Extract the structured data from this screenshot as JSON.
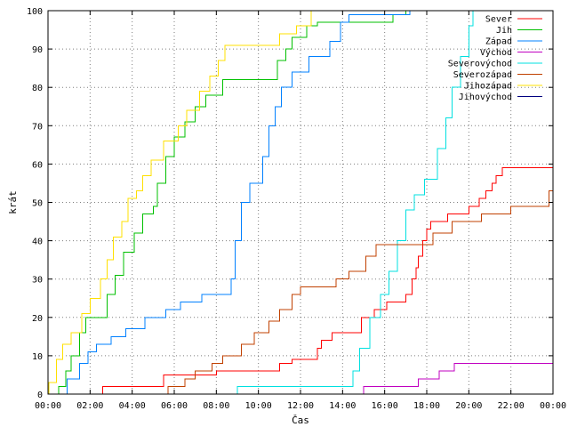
{
  "chart_data": {
    "type": "line",
    "title": "",
    "xlabel": "Čas",
    "ylabel": "krát",
    "xlim": [
      0,
      24
    ],
    "ylim": [
      0,
      100
    ],
    "x_ticks": [
      0,
      2,
      4,
      6,
      8,
      10,
      12,
      14,
      16,
      18,
      20,
      22,
      24
    ],
    "x_tick_labels": [
      "00:00",
      "02:00",
      "04:00",
      "06:00",
      "08:00",
      "10:00",
      "12:00",
      "14:00",
      "16:00",
      "18:00",
      "20:00",
      "22:00",
      "00:00"
    ],
    "y_ticks": [
      0,
      10,
      20,
      30,
      40,
      50,
      60,
      70,
      80,
      90,
      100
    ],
    "y_tick_labels": [
      "0",
      "10",
      "20",
      "30",
      "40",
      "50",
      "60",
      "70",
      "80",
      "90",
      "100"
    ],
    "grid": true,
    "legend_position": "top-right",
    "series": [
      {
        "name": "Sever",
        "color": "#ff0000",
        "step": true,
        "points": [
          [
            2.6,
            0
          ],
          [
            2.6,
            2
          ],
          [
            5.5,
            2
          ],
          [
            5.5,
            5
          ],
          [
            8,
            5
          ],
          [
            8,
            6
          ],
          [
            11,
            6
          ],
          [
            11,
            8
          ],
          [
            11.6,
            8
          ],
          [
            11.6,
            9
          ],
          [
            12.8,
            9
          ],
          [
            12.8,
            12
          ],
          [
            13,
            12
          ],
          [
            13,
            14
          ],
          [
            13.5,
            14
          ],
          [
            13.5,
            16
          ],
          [
            14.9,
            16
          ],
          [
            14.9,
            20
          ],
          [
            15.5,
            20
          ],
          [
            15.5,
            22
          ],
          [
            16.1,
            22
          ],
          [
            16.1,
            24
          ],
          [
            17,
            24
          ],
          [
            17,
            26
          ],
          [
            17.3,
            26
          ],
          [
            17.3,
            30
          ],
          [
            17.5,
            30
          ],
          [
            17.5,
            33
          ],
          [
            17.6,
            33
          ],
          [
            17.6,
            36
          ],
          [
            17.8,
            36
          ],
          [
            17.8,
            40
          ],
          [
            18,
            40
          ],
          [
            18,
            43
          ],
          [
            18.2,
            43
          ],
          [
            18.2,
            45
          ],
          [
            19,
            45
          ],
          [
            19,
            47
          ],
          [
            20,
            47
          ],
          [
            20,
            49
          ],
          [
            20.5,
            49
          ],
          [
            20.5,
            51
          ],
          [
            20.8,
            51
          ],
          [
            20.8,
            53
          ],
          [
            21.1,
            53
          ],
          [
            21.1,
            55
          ],
          [
            21.3,
            55
          ],
          [
            21.3,
            57
          ],
          [
            21.6,
            57
          ],
          [
            21.6,
            59
          ],
          [
            24,
            59
          ]
        ]
      },
      {
        "name": "Jih",
        "color": "#00c000",
        "step": true,
        "points": [
          [
            0.5,
            0
          ],
          [
            0.5,
            2
          ],
          [
            0.85,
            2
          ],
          [
            0.85,
            6
          ],
          [
            1.1,
            6
          ],
          [
            1.1,
            10
          ],
          [
            1.5,
            10
          ],
          [
            1.5,
            16
          ],
          [
            1.8,
            16
          ],
          [
            1.8,
            20
          ],
          [
            2.8,
            20
          ],
          [
            2.8,
            26
          ],
          [
            3.2,
            26
          ],
          [
            3.2,
            31
          ],
          [
            3.6,
            31
          ],
          [
            3.6,
            37
          ],
          [
            4.1,
            37
          ],
          [
            4.1,
            42
          ],
          [
            4.5,
            42
          ],
          [
            4.5,
            47
          ],
          [
            5,
            47
          ],
          [
            5,
            49
          ],
          [
            5.2,
            49
          ],
          [
            5.2,
            55
          ],
          [
            5.6,
            55
          ],
          [
            5.6,
            62
          ],
          [
            6,
            62
          ],
          [
            6,
            67
          ],
          [
            6.5,
            67
          ],
          [
            6.5,
            71
          ],
          [
            7,
            71
          ],
          [
            7,
            75
          ],
          [
            7.5,
            75
          ],
          [
            7.5,
            78
          ],
          [
            8.3,
            78
          ],
          [
            8.3,
            82
          ],
          [
            10.9,
            82
          ],
          [
            10.9,
            87
          ],
          [
            11.3,
            87
          ],
          [
            11.3,
            90
          ],
          [
            11.6,
            90
          ],
          [
            11.6,
            93
          ],
          [
            12.3,
            93
          ],
          [
            12.3,
            96
          ],
          [
            12.8,
            96
          ],
          [
            12.8,
            97
          ],
          [
            16.4,
            97
          ],
          [
            16.4,
            99
          ],
          [
            17,
            99
          ],
          [
            17,
            100
          ]
        ]
      },
      {
        "name": "Západ",
        "color": "#0080ff",
        "step": true,
        "points": [
          [
            0.9,
            0
          ],
          [
            0.9,
            4
          ],
          [
            1.5,
            4
          ],
          [
            1.5,
            8
          ],
          [
            1.9,
            8
          ],
          [
            1.9,
            11
          ],
          [
            2.3,
            11
          ],
          [
            2.3,
            13
          ],
          [
            3,
            13
          ],
          [
            3,
            15
          ],
          [
            3.7,
            15
          ],
          [
            3.7,
            17
          ],
          [
            4.6,
            17
          ],
          [
            4.6,
            20
          ],
          [
            5.6,
            20
          ],
          [
            5.6,
            22
          ],
          [
            6.3,
            22
          ],
          [
            6.3,
            24
          ],
          [
            7.3,
            24
          ],
          [
            7.3,
            26
          ],
          [
            8.7,
            26
          ],
          [
            8.7,
            30
          ],
          [
            8.9,
            30
          ],
          [
            8.9,
            40
          ],
          [
            9.2,
            40
          ],
          [
            9.2,
            50
          ],
          [
            9.6,
            50
          ],
          [
            9.6,
            55
          ],
          [
            10.2,
            55
          ],
          [
            10.2,
            62
          ],
          [
            10.5,
            62
          ],
          [
            10.5,
            70
          ],
          [
            10.8,
            70
          ],
          [
            10.8,
            75
          ],
          [
            11.1,
            75
          ],
          [
            11.1,
            80
          ],
          [
            11.6,
            80
          ],
          [
            11.6,
            84
          ],
          [
            12.4,
            84
          ],
          [
            12.4,
            88
          ],
          [
            13.4,
            88
          ],
          [
            13.4,
            92
          ],
          [
            13.9,
            92
          ],
          [
            13.9,
            97
          ],
          [
            14.3,
            97
          ],
          [
            14.3,
            99
          ],
          [
            17.2,
            99
          ],
          [
            17.2,
            100
          ]
        ]
      },
      {
        "name": "Východ",
        "color": "#c000c0",
        "step": true,
        "points": [
          [
            15,
            0
          ],
          [
            15,
            2
          ],
          [
            17.6,
            2
          ],
          [
            17.6,
            4
          ],
          [
            18.6,
            4
          ],
          [
            18.6,
            6
          ],
          [
            19.3,
            6
          ],
          [
            19.3,
            8
          ],
          [
            24,
            8
          ]
        ]
      },
      {
        "name": "Severovýchod",
        "color": "#00e0e0",
        "step": true,
        "points": [
          [
            9,
            0
          ],
          [
            9,
            2
          ],
          [
            14.5,
            2
          ],
          [
            14.5,
            6
          ],
          [
            14.8,
            6
          ],
          [
            14.8,
            12
          ],
          [
            15.3,
            12
          ],
          [
            15.3,
            20
          ],
          [
            15.8,
            20
          ],
          [
            15.8,
            26
          ],
          [
            16.2,
            26
          ],
          [
            16.2,
            32
          ],
          [
            16.6,
            32
          ],
          [
            16.6,
            40
          ],
          [
            17,
            40
          ],
          [
            17,
            48
          ],
          [
            17.4,
            48
          ],
          [
            17.4,
            52
          ],
          [
            17.9,
            52
          ],
          [
            17.9,
            56
          ],
          [
            18.5,
            56
          ],
          [
            18.5,
            64
          ],
          [
            18.9,
            64
          ],
          [
            18.9,
            72
          ],
          [
            19.2,
            72
          ],
          [
            19.2,
            80
          ],
          [
            19.6,
            80
          ],
          [
            19.6,
            88
          ],
          [
            20,
            88
          ],
          [
            20,
            96
          ],
          [
            20.2,
            96
          ],
          [
            20.2,
            100
          ]
        ]
      },
      {
        "name": "Severozápad",
        "color": "#c04000",
        "step": true,
        "points": [
          [
            5.7,
            0
          ],
          [
            5.7,
            2
          ],
          [
            6.5,
            2
          ],
          [
            6.5,
            4
          ],
          [
            7,
            4
          ],
          [
            7,
            6
          ],
          [
            7.8,
            6
          ],
          [
            7.8,
            8
          ],
          [
            8.3,
            8
          ],
          [
            8.3,
            10
          ],
          [
            9.2,
            10
          ],
          [
            9.2,
            13
          ],
          [
            9.8,
            13
          ],
          [
            9.8,
            16
          ],
          [
            10.5,
            16
          ],
          [
            10.5,
            19
          ],
          [
            11,
            19
          ],
          [
            11,
            22
          ],
          [
            11.6,
            22
          ],
          [
            11.6,
            26
          ],
          [
            12,
            26
          ],
          [
            12,
            28
          ],
          [
            13.7,
            28
          ],
          [
            13.7,
            30
          ],
          [
            14.3,
            30
          ],
          [
            14.3,
            32
          ],
          [
            15.1,
            32
          ],
          [
            15.1,
            36
          ],
          [
            15.6,
            36
          ],
          [
            15.6,
            39
          ],
          [
            18.3,
            39
          ],
          [
            18.3,
            42
          ],
          [
            19.2,
            42
          ],
          [
            19.2,
            45
          ],
          [
            20.6,
            45
          ],
          [
            20.6,
            47
          ],
          [
            22,
            47
          ],
          [
            22,
            49
          ],
          [
            23.8,
            49
          ],
          [
            23.8,
            53
          ],
          [
            24,
            53
          ],
          [
            24,
            55
          ]
        ]
      },
      {
        "name": "Jihozápad",
        "color": "#ffe000",
        "step": true,
        "points": [
          [
            0.05,
            0
          ],
          [
            0.05,
            3
          ],
          [
            0.4,
            3
          ],
          [
            0.4,
            9
          ],
          [
            0.7,
            9
          ],
          [
            0.7,
            13
          ],
          [
            1.1,
            13
          ],
          [
            1.1,
            16
          ],
          [
            1.6,
            16
          ],
          [
            1.6,
            21
          ],
          [
            2,
            21
          ],
          [
            2,
            25
          ],
          [
            2.5,
            25
          ],
          [
            2.5,
            30
          ],
          [
            2.8,
            30
          ],
          [
            2.8,
            35
          ],
          [
            3.1,
            35
          ],
          [
            3.1,
            41
          ],
          [
            3.5,
            41
          ],
          [
            3.5,
            45
          ],
          [
            3.8,
            45
          ],
          [
            3.8,
            51
          ],
          [
            4.2,
            51
          ],
          [
            4.2,
            53
          ],
          [
            4.5,
            53
          ],
          [
            4.5,
            57
          ],
          [
            4.9,
            57
          ],
          [
            4.9,
            61
          ],
          [
            5.5,
            61
          ],
          [
            5.5,
            66
          ],
          [
            6.2,
            66
          ],
          [
            6.2,
            70
          ],
          [
            6.6,
            70
          ],
          [
            6.6,
            74
          ],
          [
            7.2,
            74
          ],
          [
            7.2,
            79
          ],
          [
            7.7,
            79
          ],
          [
            7.7,
            83
          ],
          [
            8.1,
            83
          ],
          [
            8.1,
            87
          ],
          [
            8.4,
            87
          ],
          [
            8.4,
            91
          ],
          [
            11,
            91
          ],
          [
            11,
            94
          ],
          [
            11.8,
            94
          ],
          [
            11.8,
            96
          ],
          [
            12.5,
            96
          ],
          [
            12.5,
            100
          ]
        ]
      },
      {
        "name": "Jihovýchod",
        "color": "#000080",
        "step": true,
        "points": []
      }
    ]
  }
}
